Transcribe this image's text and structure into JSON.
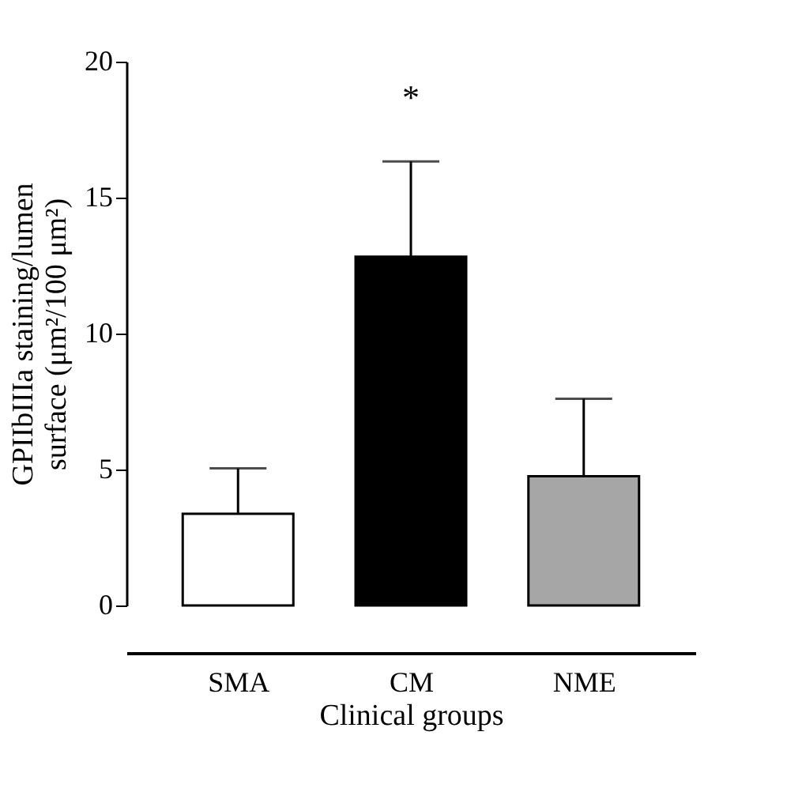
{
  "chart_data": {
    "type": "bar",
    "categories": [
      "SMA",
      "CM",
      "NME"
    ],
    "values": [
      3.37,
      12.83,
      4.75
    ],
    "colors": [
      "#ffffff",
      "#000000",
      "#a6a6a6"
    ],
    "errors": [
      [
        3.37,
        5.04
      ],
      [
        12.83,
        16.33
      ],
      [
        4.75,
        7.6
      ]
    ],
    "xlabel": "Clinical groups",
    "ylabel": "GPIIbIIIa staining/lumen surface (μm²/100 μm²)",
    "ylim": [
      0,
      20
    ],
    "yticks": [
      0,
      5,
      10,
      15,
      20
    ],
    "annotations": [
      "*"
    ],
    "grid": false
  }
}
